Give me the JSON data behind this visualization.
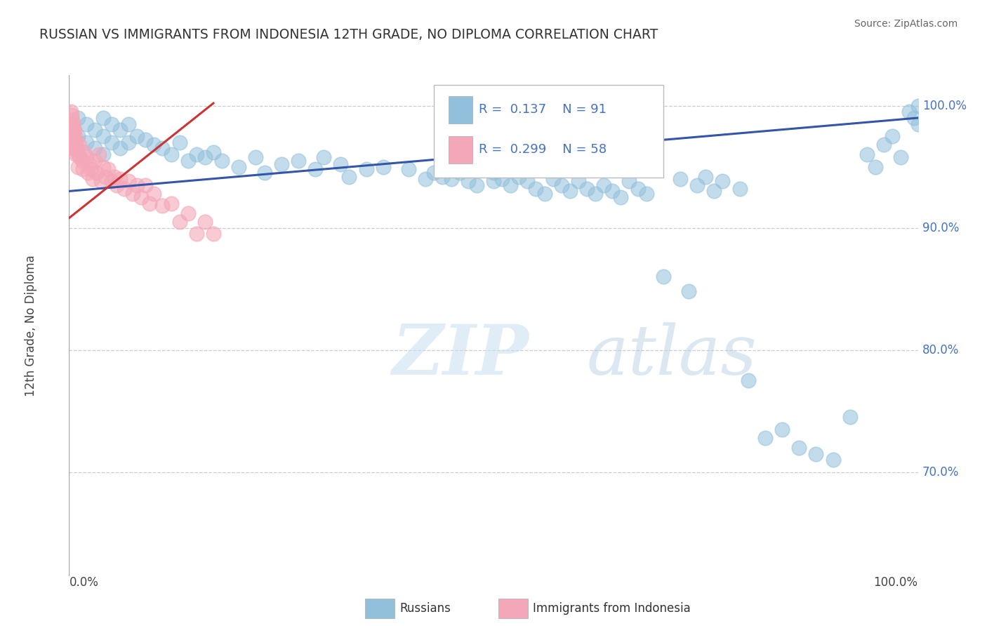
{
  "title": "RUSSIAN VS IMMIGRANTS FROM INDONESIA 12TH GRADE, NO DIPLOMA CORRELATION CHART",
  "source": "Source: ZipAtlas.com",
  "ylabel": "12th Grade, No Diploma",
  "ytick_labels": [
    "70.0%",
    "80.0%",
    "90.0%",
    "100.0%"
  ],
  "ytick_values": [
    0.7,
    0.8,
    0.9,
    1.0
  ],
  "xlim": [
    0.0,
    1.0
  ],
  "ylim": [
    0.615,
    1.025
  ],
  "legend_r_blue": "R =  0.137",
  "legend_n_blue": "N = 91",
  "legend_r_pink": "R =  0.299",
  "legend_n_pink": "N = 58",
  "blue_color": "#92C0DC",
  "pink_color": "#F4A7B8",
  "trendline_blue": "#3355AA",
  "trendline_pink": "#CC3333",
  "watermark_zip": "ZIP",
  "watermark_atlas": "atlas",
  "blue_scatter_x": [
    0.01,
    0.01,
    0.02,
    0.02,
    0.03,
    0.03,
    0.04,
    0.04,
    0.04,
    0.05,
    0.05,
    0.06,
    0.06,
    0.07,
    0.07,
    0.08,
    0.09,
    0.1,
    0.11,
    0.12,
    0.13,
    0.14,
    0.15,
    0.16,
    0.17,
    0.18,
    0.2,
    0.22,
    0.23,
    0.25,
    0.27,
    0.29,
    0.3,
    0.32,
    0.33,
    0.35,
    0.37,
    0.4,
    0.42,
    0.43,
    0.44,
    0.44,
    0.45,
    0.45,
    0.46,
    0.47,
    0.48,
    0.5,
    0.5,
    0.51,
    0.52,
    0.53,
    0.54,
    0.55,
    0.56,
    0.57,
    0.58,
    0.59,
    0.6,
    0.61,
    0.62,
    0.63,
    0.64,
    0.65,
    0.66,
    0.67,
    0.68,
    0.7,
    0.72,
    0.73,
    0.74,
    0.75,
    0.76,
    0.77,
    0.79,
    0.8,
    0.82,
    0.84,
    0.86,
    0.88,
    0.9,
    0.92,
    0.94,
    0.95,
    0.96,
    0.97,
    0.98,
    0.99,
    0.995,
    1.0,
    1.0
  ],
  "blue_scatter_y": [
    0.99,
    0.975,
    0.985,
    0.97,
    0.98,
    0.965,
    0.99,
    0.975,
    0.96,
    0.985,
    0.97,
    0.98,
    0.965,
    0.985,
    0.97,
    0.975,
    0.972,
    0.968,
    0.965,
    0.96,
    0.97,
    0.955,
    0.96,
    0.958,
    0.962,
    0.955,
    0.95,
    0.958,
    0.945,
    0.952,
    0.955,
    0.948,
    0.958,
    0.952,
    0.942,
    0.948,
    0.95,
    0.948,
    0.94,
    0.945,
    0.955,
    0.942,
    0.95,
    0.94,
    0.945,
    0.938,
    0.935,
    0.945,
    0.938,
    0.94,
    0.935,
    0.942,
    0.938,
    0.932,
    0.928,
    0.94,
    0.935,
    0.93,
    0.938,
    0.932,
    0.928,
    0.935,
    0.93,
    0.925,
    0.938,
    0.932,
    0.928,
    0.86,
    0.94,
    0.848,
    0.935,
    0.942,
    0.93,
    0.938,
    0.932,
    0.775,
    0.728,
    0.735,
    0.72,
    0.715,
    0.71,
    0.745,
    0.96,
    0.95,
    0.968,
    0.975,
    0.958,
    0.995,
    0.99,
    0.985,
    1.0
  ],
  "pink_scatter_x": [
    0.002,
    0.002,
    0.003,
    0.003,
    0.003,
    0.003,
    0.004,
    0.004,
    0.004,
    0.004,
    0.005,
    0.005,
    0.005,
    0.006,
    0.006,
    0.007,
    0.007,
    0.008,
    0.008,
    0.009,
    0.01,
    0.01,
    0.012,
    0.013,
    0.015,
    0.016,
    0.018,
    0.02,
    0.022,
    0.024,
    0.026,
    0.028,
    0.03,
    0.032,
    0.035,
    0.038,
    0.04,
    0.043,
    0.046,
    0.05,
    0.053,
    0.056,
    0.06,
    0.065,
    0.07,
    0.075,
    0.08,
    0.085,
    0.09,
    0.095,
    0.1,
    0.11,
    0.12,
    0.13,
    0.14,
    0.15,
    0.16,
    0.17
  ],
  "pink_scatter_y": [
    0.995,
    0.985,
    0.992,
    0.982,
    0.975,
    0.968,
    0.988,
    0.98,
    0.972,
    0.965,
    0.985,
    0.975,
    0.968,
    0.98,
    0.972,
    0.975,
    0.965,
    0.97,
    0.96,
    0.965,
    0.96,
    0.95,
    0.968,
    0.958,
    0.955,
    0.948,
    0.962,
    0.958,
    0.945,
    0.952,
    0.948,
    0.94,
    0.955,
    0.945,
    0.96,
    0.938,
    0.95,
    0.942,
    0.948,
    0.938,
    0.942,
    0.935,
    0.94,
    0.932,
    0.938,
    0.928,
    0.935,
    0.925,
    0.935,
    0.92,
    0.928,
    0.918,
    0.92,
    0.905,
    0.912,
    0.895,
    0.905,
    0.895
  ],
  "blue_trend_x": [
    0.0,
    1.0
  ],
  "blue_trend_y": [
    0.93,
    0.99
  ],
  "pink_trend_x": [
    0.0,
    0.17
  ],
  "pink_trend_y": [
    0.908,
    1.002
  ]
}
